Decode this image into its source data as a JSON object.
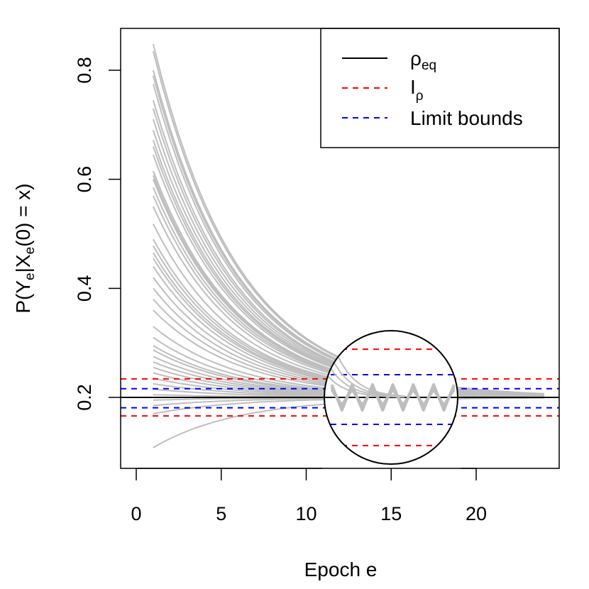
{
  "chart_data": {
    "type": "line",
    "xlabel": "Epoch e",
    "ylabel": "P(Y_e|X_e(0) = x)",
    "xlim": [
      -1,
      25
    ],
    "ylim": [
      0.07,
      0.85
    ],
    "xticks": [
      "0",
      "5",
      "10",
      "15",
      "20"
    ],
    "yticks": [
      "0.2",
      "0.4",
      "0.6",
      "0.8"
    ],
    "grid": false,
    "legend_position": "top-right",
    "legend": [
      {
        "label_main": "ρ",
        "label_sub": "eq",
        "style": "solid",
        "color": "#000000"
      },
      {
        "label_main": "I",
        "label_sub": "ρ",
        "style": "dashed",
        "color": "#ff0000"
      },
      {
        "label_main": "Limit bounds",
        "label_sub": "",
        "style": "dashed",
        "color": "#0000ff"
      }
    ],
    "reference_lines": [
      {
        "name": "rho_eq",
        "y": 0.2,
        "color": "#000000",
        "style": "solid"
      },
      {
        "name": "I_rho_upper",
        "y": 0.234,
        "color": "#ff0000",
        "style": "dashed"
      },
      {
        "name": "I_rho_lower",
        "y": 0.166,
        "color": "#ff0000",
        "style": "dashed"
      },
      {
        "name": "limit_upper",
        "y": 0.216,
        "color": "#0000ff",
        "style": "dashed"
      },
      {
        "name": "limit_lower",
        "y": 0.181,
        "color": "#0000ff",
        "style": "dashed"
      }
    ],
    "trajectories": {
      "color": "#bebebe",
      "epochs": [
        1,
        24
      ],
      "equilibrium": 0.2,
      "decay": 0.82,
      "initial_values": [
        0.848,
        0.835,
        0.8,
        0.79,
        0.775,
        0.745,
        0.73,
        0.71,
        0.69,
        0.672,
        0.66,
        0.645,
        0.615,
        0.607,
        0.6,
        0.585,
        0.57,
        0.55,
        0.518,
        0.49,
        0.478,
        0.465,
        0.455,
        0.44,
        0.42,
        0.4,
        0.38,
        0.36,
        0.33,
        0.31,
        0.295,
        0.287,
        0.275,
        0.265,
        0.255,
        0.245,
        0.235,
        0.225,
        0.215,
        0.205,
        0.195,
        0.185,
        0.17,
        0.108
      ]
    },
    "inset": {
      "shape": "circle",
      "center_x": 15,
      "center_y": 0.2,
      "magnification": 2.6,
      "zigzag": {
        "x_start": 11.5,
        "x_end": 19,
        "step": 0.6,
        "amplitude": 0.009
      }
    }
  }
}
